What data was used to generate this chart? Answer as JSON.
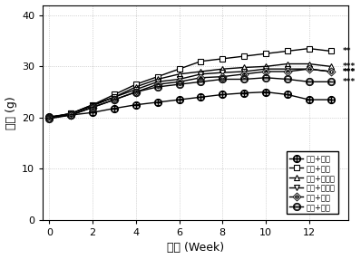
{
  "weeks": [
    0,
    1,
    2,
    3,
    4,
    5,
    6,
    7,
    8,
    9,
    10,
    11,
    12,
    13
  ],
  "series": [
    {
      "key": "low_fat_water",
      "label": "低脂+清水",
      "marker": "circle_plus",
      "values": [
        20.2,
        20.5,
        21.0,
        21.8,
        22.5,
        23.0,
        23.5,
        24.0,
        24.5,
        24.8,
        25.0,
        24.5,
        23.5,
        23.5
      ]
    },
    {
      "key": "high_fat_water",
      "label": "高脂+清水",
      "marker": "s",
      "values": [
        20.0,
        20.8,
        22.5,
        24.5,
        26.5,
        28.0,
        29.5,
        31.0,
        31.5,
        32.0,
        32.5,
        33.0,
        33.5,
        33.0
      ],
      "sig": "**"
    },
    {
      "key": "high_fat_oil",
      "label": "高脂+油腹层",
      "marker": "^",
      "values": [
        20.1,
        20.8,
        22.5,
        24.0,
        26.0,
        27.5,
        28.5,
        29.0,
        29.5,
        29.8,
        30.0,
        30.5,
        30.5,
        30.0
      ],
      "sig": "***"
    },
    {
      "key": "high_fat_white",
      "label": "高脂+白皮层",
      "marker": "v",
      "values": [
        20.0,
        20.8,
        22.3,
        24.0,
        25.5,
        27.0,
        27.5,
        28.5,
        28.8,
        29.0,
        29.5,
        29.5,
        29.5,
        29.0
      ],
      "sig": "***"
    },
    {
      "key": "high_fat_coat",
      "label": "高脂+囊衣",
      "marker": "diamond_line",
      "values": [
        20.0,
        20.5,
        22.0,
        23.5,
        25.0,
        26.5,
        27.0,
        27.8,
        28.0,
        28.5,
        29.0,
        29.0,
        29.5,
        29.0
      ],
      "sig": "***"
    },
    {
      "key": "high_fat_juice",
      "label": "高脂+汁胞",
      "marker": "circle_minus",
      "values": [
        19.8,
        20.5,
        22.0,
        23.5,
        25.0,
        26.0,
        26.5,
        27.0,
        27.5,
        27.5,
        27.8,
        27.5,
        27.0,
        27.0
      ],
      "sig": "***"
    }
  ],
  "xlabel": "星期 (Week)",
  "ylabel": "体重 (g)",
  "xlim": [
    -0.3,
    13.8
  ],
  "ylim": [
    0,
    42
  ],
  "xticks": [
    0,
    2,
    4,
    6,
    8,
    10,
    12
  ],
  "yticks": [
    0,
    10,
    20,
    30,
    40
  ],
  "linewidth": 1.0,
  "markersize": 4.5,
  "sig_x": 13.55
}
